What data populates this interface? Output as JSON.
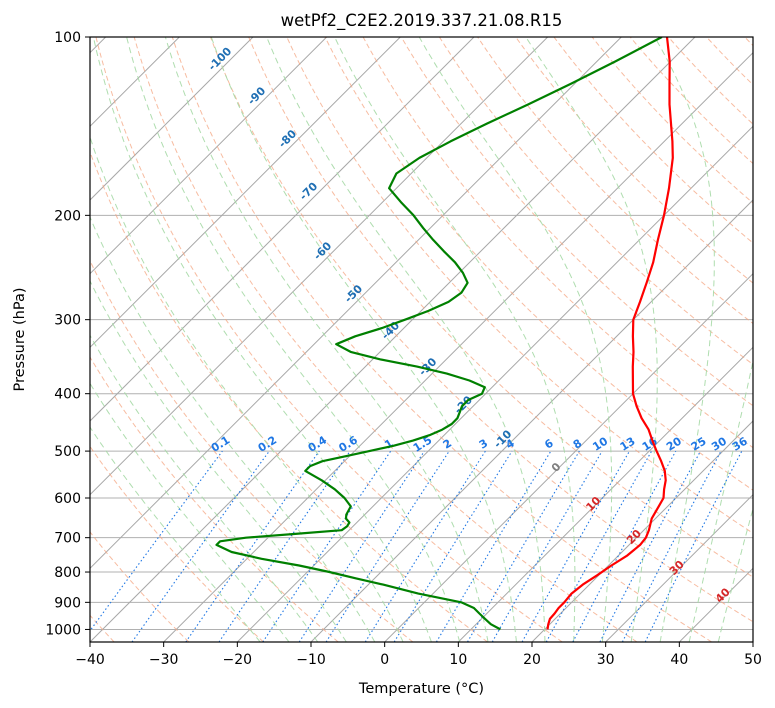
{
  "chart_data": {
    "type": "line",
    "subtype": "skew-t log-p diagram",
    "title": "wetPf2_C2E2.2019.337.21.08.R15",
    "xlabel": "Temperature (°C)",
    "ylabel": "Pressure (hPa)",
    "xlim": [
      -40,
      50
    ],
    "ylim": [
      1050,
      100
    ],
    "y_scale": "log",
    "x_ticks": [
      "−40",
      "−30",
      "−20",
      "−10",
      "0",
      "10",
      "20",
      "30",
      "40",
      "50"
    ],
    "y_ticks": [
      "100",
      "200",
      "300",
      "400",
      "500",
      "600",
      "700",
      "800",
      "900",
      "1000"
    ],
    "grid": true,
    "colors": {
      "temperature": "#ff0000",
      "dewpoint": "#008000",
      "isotherms": "#b0b0b0",
      "dry_adiabats": "#f4a582",
      "moist_adiabats": "#a6d9a6",
      "mixing_ratio": "#1f77e4",
      "label_negative_isotherm": "#1f6fb4",
      "label_positive_isotherm": "#d62728",
      "label_zero_isotherm": "#808080"
    },
    "series": [
      {
        "name": "temperature",
        "pressure_hpa": [
          1000,
          980,
          960,
          940,
          920,
          900,
          870,
          840,
          810,
          780,
          750,
          720,
          700,
          680,
          650,
          620,
          600,
          580,
          560,
          540,
          520,
          500,
          480,
          460,
          440,
          420,
          400,
          380,
          360,
          340,
          320,
          300,
          280,
          260,
          240,
          220,
          200,
          180,
          160,
          150,
          140,
          130,
          120,
          110,
          100
        ],
        "values_c": [
          20.4,
          19.8,
          19.3,
          19.2,
          19.0,
          19.0,
          18.8,
          19.1,
          19.8,
          20.4,
          21.2,
          21.5,
          21.3,
          20.7,
          19.5,
          18.8,
          18.3,
          17.2,
          16.2,
          14.8,
          13.0,
          11.0,
          9.0,
          7.0,
          4.5,
          2.2,
          0.0,
          -1.8,
          -3.7,
          -5.6,
          -7.8,
          -10.0,
          -11.5,
          -13.2,
          -15.1,
          -17.5,
          -20.0,
          -23.0,
          -26.6,
          -28.9,
          -31.5,
          -34.3,
          -37.1,
          -40.1,
          -43.8
        ]
      },
      {
        "name": "dewpoint",
        "pressure_hpa": [
          1000,
          980,
          960,
          940,
          920,
          900,
          870,
          840,
          820,
          800,
          780,
          760,
          740,
          720,
          710,
          700,
          690,
          680,
          670,
          660,
          650,
          640,
          620,
          600,
          580,
          560,
          540,
          530,
          520,
          510,
          500,
          490,
          480,
          470,
          460,
          450,
          440,
          430,
          420,
          410,
          400,
          390,
          380,
          370,
          360,
          350,
          340,
          330,
          320,
          310,
          300,
          290,
          280,
          270,
          260,
          250,
          240,
          230,
          220,
          210,
          200,
          190,
          180,
          170,
          160,
          150,
          140,
          130,
          120,
          110,
          100
        ],
        "values_c": [
          14.0,
          12.0,
          10.5,
          9.0,
          7.5,
          5.0,
          -2.0,
          -8.0,
          -12.5,
          -17.0,
          -22.0,
          -28.0,
          -33.0,
          -36.0,
          -36.0,
          -33.0,
          -27.0,
          -21.0,
          -20.8,
          -21.0,
          -22.0,
          -22.5,
          -23.0,
          -25.0,
          -27.5,
          -30.5,
          -34.0,
          -34.0,
          -33.0,
          -30.5,
          -28.0,
          -25.5,
          -23.5,
          -22.0,
          -21.0,
          -20.5,
          -20.5,
          -21.0,
          -21.5,
          -21.5,
          -20.5,
          -21.0,
          -24.0,
          -28.0,
          -33.0,
          -39.0,
          -44.0,
          -47.0,
          -45.5,
          -43.0,
          -41.0,
          -39.0,
          -37.5,
          -37.0,
          -37.5,
          -39.5,
          -42.0,
          -45.0,
          -48.0,
          -51.0,
          -54.0,
          -57.5,
          -61.0,
          -62.0,
          -61.0,
          -59.0,
          -56.5,
          -53.5,
          -50.5,
          -47.5,
          -44.5
        ]
      }
    ],
    "isotherm_labels": [
      "-100",
      "-90",
      "-80",
      "-70",
      "-60",
      "-50",
      "-40",
      "-30",
      "-20",
      "-10",
      "0",
      "10",
      "20",
      "30",
      "40"
    ],
    "isotherm_label_values": [
      -100,
      -90,
      -80,
      -70,
      -60,
      -50,
      -40,
      -30,
      -20,
      -10,
      0,
      10,
      20,
      30,
      40
    ],
    "mixing_ratio_labels": [
      "0.1",
      "0.2",
      "0.4",
      "0.6",
      "1",
      "1.5",
      "2",
      "3",
      "4",
      "6",
      "8",
      "10",
      "13",
      "16",
      "20",
      "25",
      "30",
      "36"
    ],
    "mixing_ratio_values_g_per_kg": [
      0.1,
      0.2,
      0.4,
      0.6,
      1,
      1.5,
      2,
      3,
      4,
      6,
      8,
      10,
      13,
      16,
      20,
      25,
      30,
      36
    ]
  }
}
